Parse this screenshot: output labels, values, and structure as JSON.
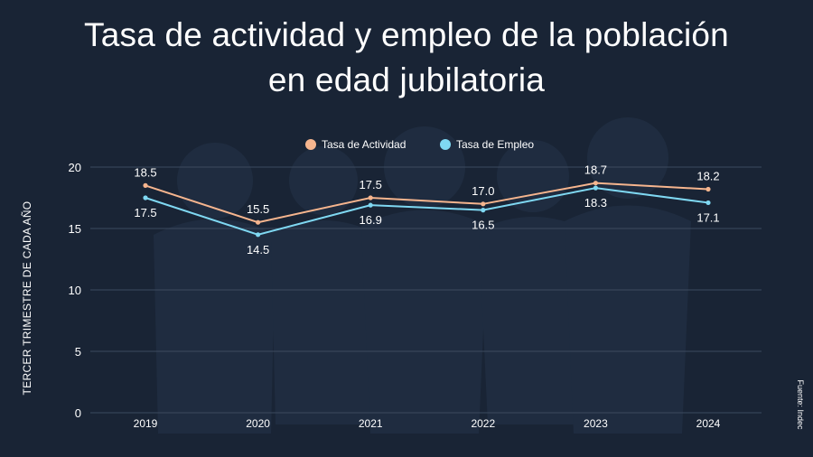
{
  "title_line1": "Tasa de actividad y empleo de la población",
  "title_line2": "en edad jubilatoria",
  "source": "Fuente: Indec",
  "colors": {
    "background": "#192435",
    "actividad": "#f6b58e",
    "empleo": "#7fd8f2",
    "grid": "#3c4a5e",
    "text": "#ffffff"
  },
  "chart_data": {
    "type": "line",
    "categories": [
      "2019",
      "2020",
      "2021",
      "2022",
      "2023",
      "2024"
    ],
    "series": [
      {
        "name": "Tasa de Actividad",
        "values": [
          18.5,
          15.5,
          17.5,
          17.0,
          18.7,
          18.2
        ],
        "color": "#f6b58e"
      },
      {
        "name": "Tasa de Empleo",
        "values": [
          17.5,
          14.5,
          16.9,
          16.5,
          18.3,
          17.1
        ],
        "color": "#7fd8f2"
      }
    ],
    "data_labels_actividad": [
      "18.5",
      "15.5",
      "17.5",
      "17.0",
      "18.7",
      "18.2"
    ],
    "data_labels_empleo": [
      "17.5",
      "14.5",
      "16.9",
      "16.5",
      "18.3",
      "17.1"
    ],
    "ylabel": "TERCER TRIMESTRE DE CADA AÑO",
    "ylim": [
      0,
      20
    ],
    "yticks": [
      "0",
      "5",
      "10",
      "15",
      "20"
    ],
    "grid": true,
    "legend": "top-center"
  }
}
